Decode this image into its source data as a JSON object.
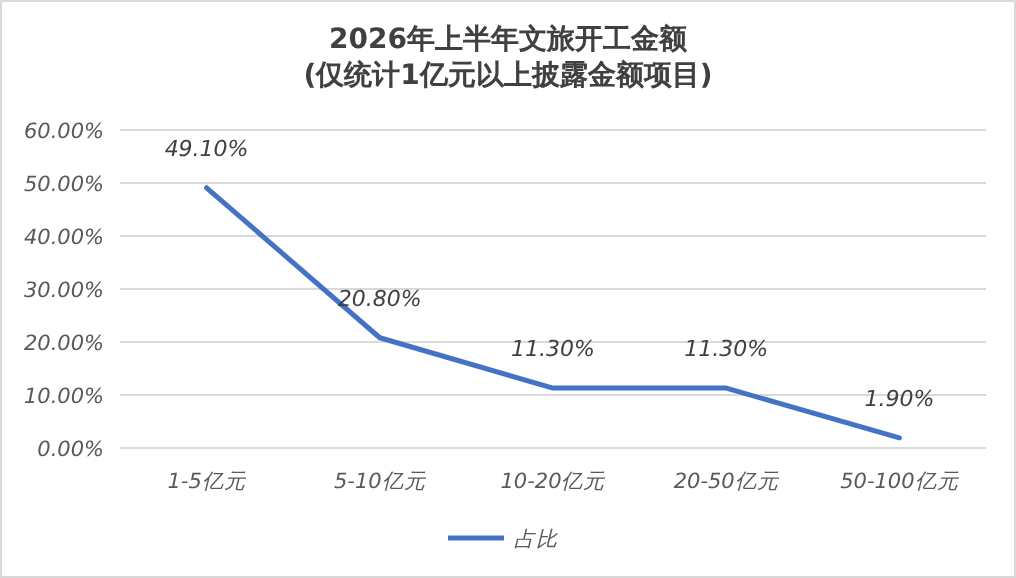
{
  "chart_data": {
    "type": "line",
    "title": "2026年上半年文旅开工金额",
    "subtitle": "(仅统计1亿元以上披露金额项目)",
    "categories": [
      "1-5亿元",
      "5-10亿元",
      "10-20亿元",
      "20-50亿元",
      "50-100亿元"
    ],
    "series": [
      {
        "name": "占比",
        "color": "#4472c4",
        "values": [
          49.1,
          20.8,
          11.3,
          11.3,
          1.9
        ],
        "value_labels": [
          "49.10%",
          "20.80%",
          "11.30%",
          "11.30%",
          "1.90%"
        ]
      }
    ],
    "ylim": [
      0,
      60
    ],
    "yticks": [
      {
        "value": 0,
        "label": "0.00%"
      },
      {
        "value": 10,
        "label": "10.00%"
      },
      {
        "value": 20,
        "label": "20.00%"
      },
      {
        "value": 30,
        "label": "30.00%"
      },
      {
        "value": 40,
        "label": "40.00%"
      },
      {
        "value": 50,
        "label": "50.00%"
      },
      {
        "value": 60,
        "label": "60.00%"
      }
    ],
    "grid": "y",
    "legend": "bottom",
    "marker": "none",
    "line_style": "solid"
  }
}
